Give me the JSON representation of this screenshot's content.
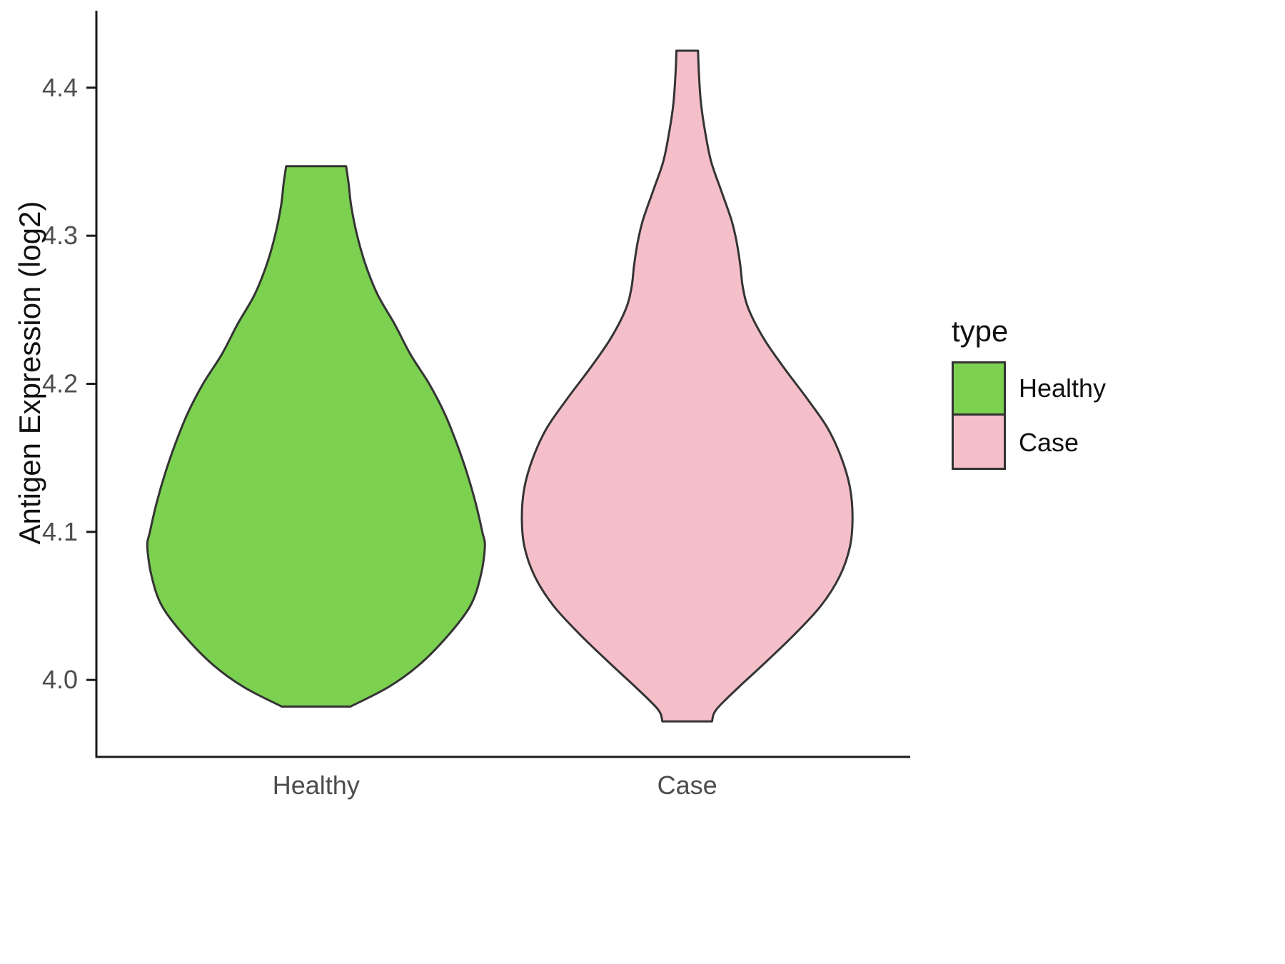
{
  "chart_data": {
    "type": "violin",
    "title": "",
    "xlabel": "",
    "ylabel": "Antigen Expression (log2)",
    "categories": [
      "Healthy",
      "Case"
    ],
    "y_ticks": [
      4.0,
      4.1,
      4.2,
      4.3,
      4.4
    ],
    "ylim": [
      3.948,
      4.452
    ],
    "grid": false,
    "axis_color": "#1a1a1a",
    "outline_color": "#343434",
    "legend": {
      "title": "type",
      "position": "right",
      "entries": [
        {
          "label": "Healthy",
          "color": "#7cd150"
        },
        {
          "label": "Case",
          "color": "#f5bfc9"
        }
      ]
    },
    "series": [
      {
        "name": "Healthy",
        "color": "#7cd150",
        "y_min": 3.982,
        "y_max": 4.347,
        "peak_y": 4.09,
        "profile": [
          [
            4.347,
            0.175
          ],
          [
            4.335,
            0.19
          ],
          [
            4.32,
            0.205
          ],
          [
            4.3,
            0.24
          ],
          [
            4.28,
            0.29
          ],
          [
            4.26,
            0.36
          ],
          [
            4.24,
            0.46
          ],
          [
            4.22,
            0.55
          ],
          [
            4.2,
            0.66
          ],
          [
            4.18,
            0.75
          ],
          [
            4.16,
            0.82
          ],
          [
            4.14,
            0.88
          ],
          [
            4.12,
            0.93
          ],
          [
            4.1,
            0.97
          ],
          [
            4.09,
            0.985
          ],
          [
            4.07,
            0.96
          ],
          [
            4.05,
            0.9
          ],
          [
            4.03,
            0.77
          ],
          [
            4.01,
            0.6
          ],
          [
            3.995,
            0.42
          ],
          [
            3.982,
            0.2
          ]
        ]
      },
      {
        "name": "Case",
        "color": "#f5bfc9",
        "y_min": 3.972,
        "y_max": 4.425,
        "peak_y": 4.11,
        "profile": [
          [
            4.425,
            0.063
          ],
          [
            4.41,
            0.068
          ],
          [
            4.39,
            0.08
          ],
          [
            4.37,
            0.105
          ],
          [
            4.35,
            0.14
          ],
          [
            4.33,
            0.2
          ],
          [
            4.31,
            0.26
          ],
          [
            4.295,
            0.29
          ],
          [
            4.28,
            0.31
          ],
          [
            4.265,
            0.325
          ],
          [
            4.25,
            0.36
          ],
          [
            4.23,
            0.45
          ],
          [
            4.21,
            0.57
          ],
          [
            4.19,
            0.7
          ],
          [
            4.17,
            0.82
          ],
          [
            4.15,
            0.9
          ],
          [
            4.13,
            0.95
          ],
          [
            4.11,
            0.965
          ],
          [
            4.09,
            0.95
          ],
          [
            4.07,
            0.89
          ],
          [
            4.05,
            0.78
          ],
          [
            4.03,
            0.62
          ],
          [
            4.01,
            0.44
          ],
          [
            3.995,
            0.3
          ],
          [
            3.98,
            0.17
          ],
          [
            3.972,
            0.145
          ]
        ]
      }
    ]
  }
}
